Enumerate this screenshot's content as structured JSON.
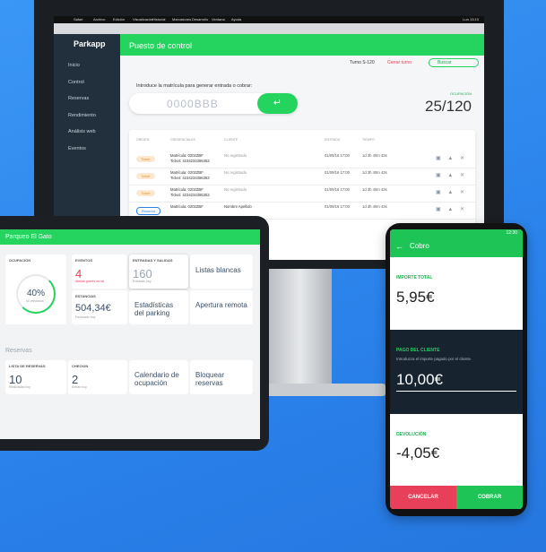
{
  "monitor": {
    "menubar": [
      "Safari",
      "Archivo",
      "Edición",
      "Visualización",
      "Historial",
      "Marcadores",
      "Desarrollo",
      "Ventana",
      "Ayuda"
    ],
    "clock": "Lun 13:10",
    "sidebar": {
      "logo": "Parkapp",
      "items": [
        "Inicio",
        "Control",
        "Reservas",
        "Rendimiento",
        "Análisis web",
        "Eventos"
      ]
    },
    "header": {
      "title": "Puesto de control"
    },
    "toolbar": {
      "shift": "Turno S-120",
      "close_shift": "Cerrar turno",
      "search": "Buscar"
    },
    "entry": {
      "prompt": "Introduce la matrícula para generar entrada o cobrar:",
      "placeholder": "0000BBB"
    },
    "occupancy": {
      "label": "OCUPACIÓN",
      "value": "25/120"
    },
    "table": {
      "headers": [
        "ORIGEN",
        "CREDENCIALES",
        "CLIENTE",
        "ENTRADA",
        "TIEMPO"
      ],
      "rows": [
        [
          "Ticket",
          "Matrícula: 0202ZBF",
          "Ticket: 4234234356353",
          "No registrado",
          "01/09/16 17:00",
          "1d 3h 40m 43s"
        ],
        [
          "Ticket",
          "Matrícula: 0202ZBF",
          "Ticket: 4234234356353",
          "No registrado",
          "01/09/16 17:00",
          "1d 3h 40m 43s"
        ],
        [
          "Ticket",
          "Matrícula: 0202ZBF",
          "Ticket: 4234234356353",
          "No registrado",
          "01/09/16 17:00",
          "1d 3h 40m 43s"
        ],
        [
          "Reserva",
          "Matrícula: 0202ZBF",
          "",
          "Nombre Apellido",
          "01/09/16 17:00",
          "1d 3h 40m 43s"
        ]
      ]
    }
  },
  "tablet": {
    "header": "Parqueo El Gato",
    "occupancy": {
      "label": "OCUPACIÓN",
      "value": "40%",
      "sub": "60 vehículos"
    },
    "events": {
      "label": "EVENTOS",
      "value": "4",
      "sub": "Alertas graves en ral"
    },
    "io": {
      "label": "ENTRADAS Y SALIDAS",
      "value": "160",
      "sub": "Entradas hoy"
    },
    "whitelist": "Listas blancas",
    "stays": {
      "label": "ESTANCIAS",
      "value": "504,34€",
      "sub": "Facturado hoy"
    },
    "stats": "Estadísticas del parking",
    "remote": "Apertura remota",
    "section": "Reservas",
    "bookings": {
      "label": "LISTA DE RESERVAS",
      "value": "10",
      "sub": "Realizadas hoy"
    },
    "checkin": {
      "label": "CHECKIN",
      "value": "2",
      "sub": "Entran hoy"
    },
    "calendar": "Calendario de ocupación",
    "block": "Bloquear reservas"
  },
  "phone": {
    "clock": "12:30",
    "title": "Cobro",
    "total_label": "IMPORTE TOTAL",
    "total": "5,95€",
    "paid_label": "PAGO DEL CLIENTE",
    "paid_hint": "Introduzca el importe pagado por el cliente.",
    "paid": "10,00€",
    "change_label": "DEVOLUCIÓN",
    "change": "-4,05€",
    "cancel": "CANCELAR",
    "charge": "COBRAR"
  }
}
